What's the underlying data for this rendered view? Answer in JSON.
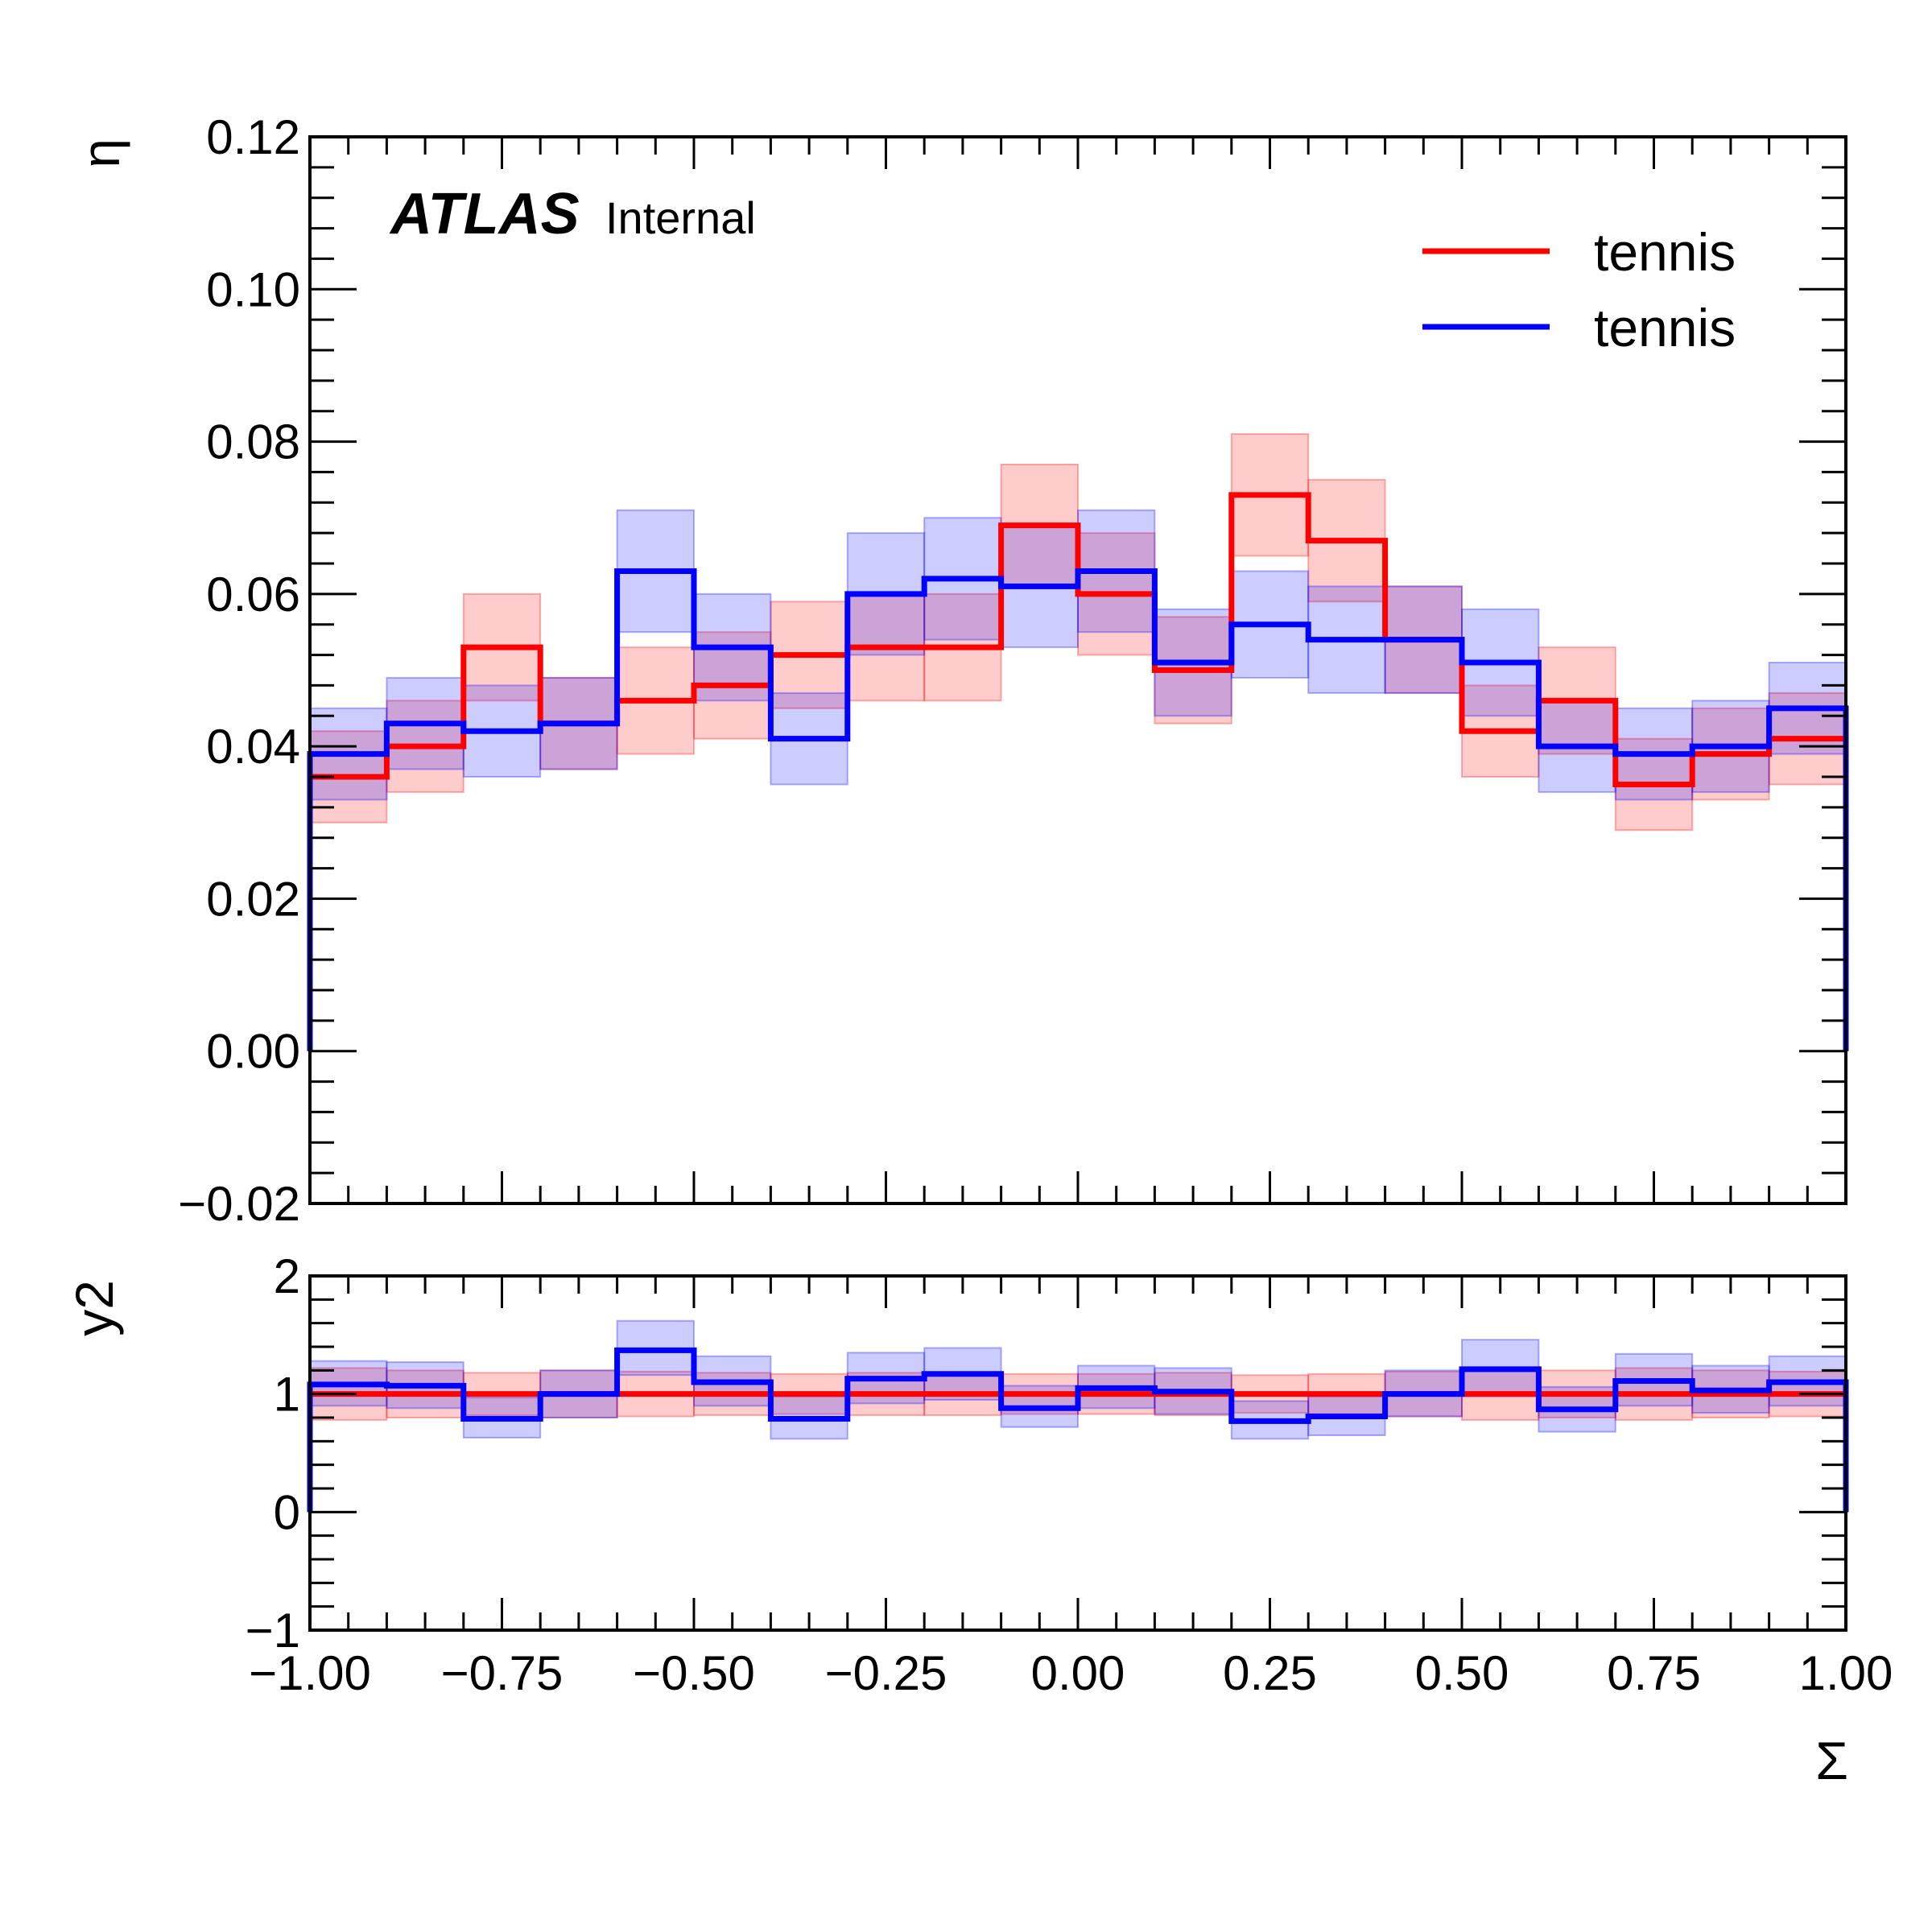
{
  "chart_data": [
    {
      "type": "line",
      "drawstyle": "steps",
      "annotation": {
        "experiment": "ATLAS",
        "status": "Internal"
      },
      "ylabel": "η",
      "xlim": [
        -1.0,
        1.0
      ],
      "ylim": [
        -0.02,
        0.12
      ],
      "yticks": [
        "−0.02",
        "0.00",
        "0.02",
        "0.04",
        "0.06",
        "0.08",
        "0.10",
        "0.12"
      ],
      "ytick_values": [
        -0.02,
        0.0,
        0.02,
        0.04,
        0.06,
        0.08,
        0.1,
        0.12
      ],
      "legend_position": "top-right",
      "bin_edges": [
        -1.0,
        -0.9,
        -0.8,
        -0.7,
        -0.6,
        -0.5,
        -0.4,
        -0.3,
        -0.2,
        -0.1,
        0.0,
        0.1,
        0.2,
        0.3,
        0.4,
        0.5,
        0.6,
        0.7,
        0.8,
        0.9,
        1.0
      ],
      "series": [
        {
          "name": "tennis",
          "color": "#ff0000",
          "values": [
            0.036,
            0.04,
            0.053,
            0.043,
            0.046,
            0.048,
            0.052,
            0.053,
            0.053,
            0.069,
            0.06,
            0.05,
            0.073,
            0.067,
            0.054,
            0.042,
            0.046,
            0.035,
            0.039,
            0.041
          ],
          "band_low": [
            0.03,
            0.034,
            0.046,
            0.037,
            0.039,
            0.041,
            0.045,
            0.046,
            0.046,
            0.061,
            0.052,
            0.043,
            0.065,
            0.059,
            0.047,
            0.036,
            0.039,
            0.029,
            0.033,
            0.035
          ],
          "band_high": [
            0.042,
            0.046,
            0.06,
            0.049,
            0.053,
            0.055,
            0.059,
            0.06,
            0.06,
            0.077,
            0.068,
            0.057,
            0.081,
            0.075,
            0.061,
            0.048,
            0.053,
            0.041,
            0.045,
            0.047
          ]
        },
        {
          "name": "tennis",
          "color": "#0000ff",
          "values": [
            0.039,
            0.043,
            0.042,
            0.043,
            0.063,
            0.053,
            0.041,
            0.06,
            0.062,
            0.061,
            0.063,
            0.051,
            0.056,
            0.054,
            0.054,
            0.051,
            0.04,
            0.039,
            0.04,
            0.045
          ],
          "band_low": [
            0.033,
            0.037,
            0.036,
            0.037,
            0.055,
            0.046,
            0.035,
            0.052,
            0.054,
            0.053,
            0.055,
            0.044,
            0.049,
            0.047,
            0.047,
            0.044,
            0.034,
            0.033,
            0.034,
            0.039
          ],
          "band_high": [
            0.045,
            0.049,
            0.048,
            0.049,
            0.071,
            0.06,
            0.047,
            0.068,
            0.07,
            0.069,
            0.071,
            0.058,
            0.063,
            0.061,
            0.061,
            0.058,
            0.046,
            0.045,
            0.046,
            0.051
          ]
        }
      ]
    },
    {
      "type": "line",
      "drawstyle": "steps",
      "ylabel": "y2",
      "xlabel": "Σ",
      "xlim": [
        -1.0,
        1.0
      ],
      "ylim": [
        -1,
        2
      ],
      "yticks": [
        "−1",
        "0",
        "1",
        "2"
      ],
      "ytick_values": [
        -1,
        0,
        1,
        2
      ],
      "xticks": [
        "−1.00",
        "−0.75",
        "−0.50",
        "−0.25",
        "0.00",
        "0.25",
        "0.50",
        "0.75",
        "1.00"
      ],
      "xtick_values": [
        -1.0,
        -0.75,
        -0.5,
        -0.25,
        0.0,
        0.25,
        0.5,
        0.75,
        1.0
      ],
      "bin_edges": [
        -1.0,
        -0.9,
        -0.8,
        -0.7,
        -0.6,
        -0.5,
        -0.4,
        -0.3,
        -0.2,
        -0.1,
        0.0,
        0.1,
        0.2,
        0.3,
        0.4,
        0.5,
        0.6,
        0.7,
        0.8,
        0.9,
        1.0
      ],
      "series": [
        {
          "color": "#ff0000",
          "values": [
            1.0,
            1.0,
            1.0,
            1.0,
            1.0,
            1.0,
            1.0,
            1.0,
            1.0,
            1.0,
            1.0,
            1.0,
            1.0,
            1.0,
            1.0,
            1.0,
            1.0,
            1.0,
            1.0,
            1.0
          ],
          "band_low": [
            0.78,
            0.8,
            0.82,
            0.8,
            0.81,
            0.82,
            0.83,
            0.82,
            0.82,
            0.83,
            0.83,
            0.82,
            0.84,
            0.83,
            0.81,
            0.78,
            0.8,
            0.78,
            0.8,
            0.81
          ],
          "band_high": [
            1.22,
            1.2,
            1.18,
            1.2,
            1.19,
            1.18,
            1.17,
            1.18,
            1.18,
            1.17,
            1.17,
            1.18,
            1.16,
            1.17,
            1.19,
            1.22,
            1.2,
            1.22,
            1.2,
            1.19
          ]
        },
        {
          "color": "#0000ff",
          "values": [
            1.08,
            1.07,
            0.79,
            1.0,
            1.37,
            1.1,
            0.79,
            1.13,
            1.17,
            0.88,
            1.05,
            1.02,
            0.77,
            0.81,
            1.0,
            1.21,
            0.87,
            1.11,
            1.03,
            1.1
          ],
          "band_low": [
            0.9,
            0.88,
            0.63,
            0.8,
            1.16,
            0.9,
            0.62,
            0.92,
            0.95,
            0.72,
            0.88,
            0.83,
            0.62,
            0.65,
            0.81,
            0.98,
            0.68,
            0.9,
            0.84,
            0.9
          ],
          "band_high": [
            1.28,
            1.27,
            0.97,
            1.2,
            1.62,
            1.32,
            0.98,
            1.35,
            1.39,
            1.07,
            1.24,
            1.22,
            0.94,
            0.98,
            1.2,
            1.46,
            1.06,
            1.34,
            1.24,
            1.32
          ]
        }
      ]
    }
  ]
}
